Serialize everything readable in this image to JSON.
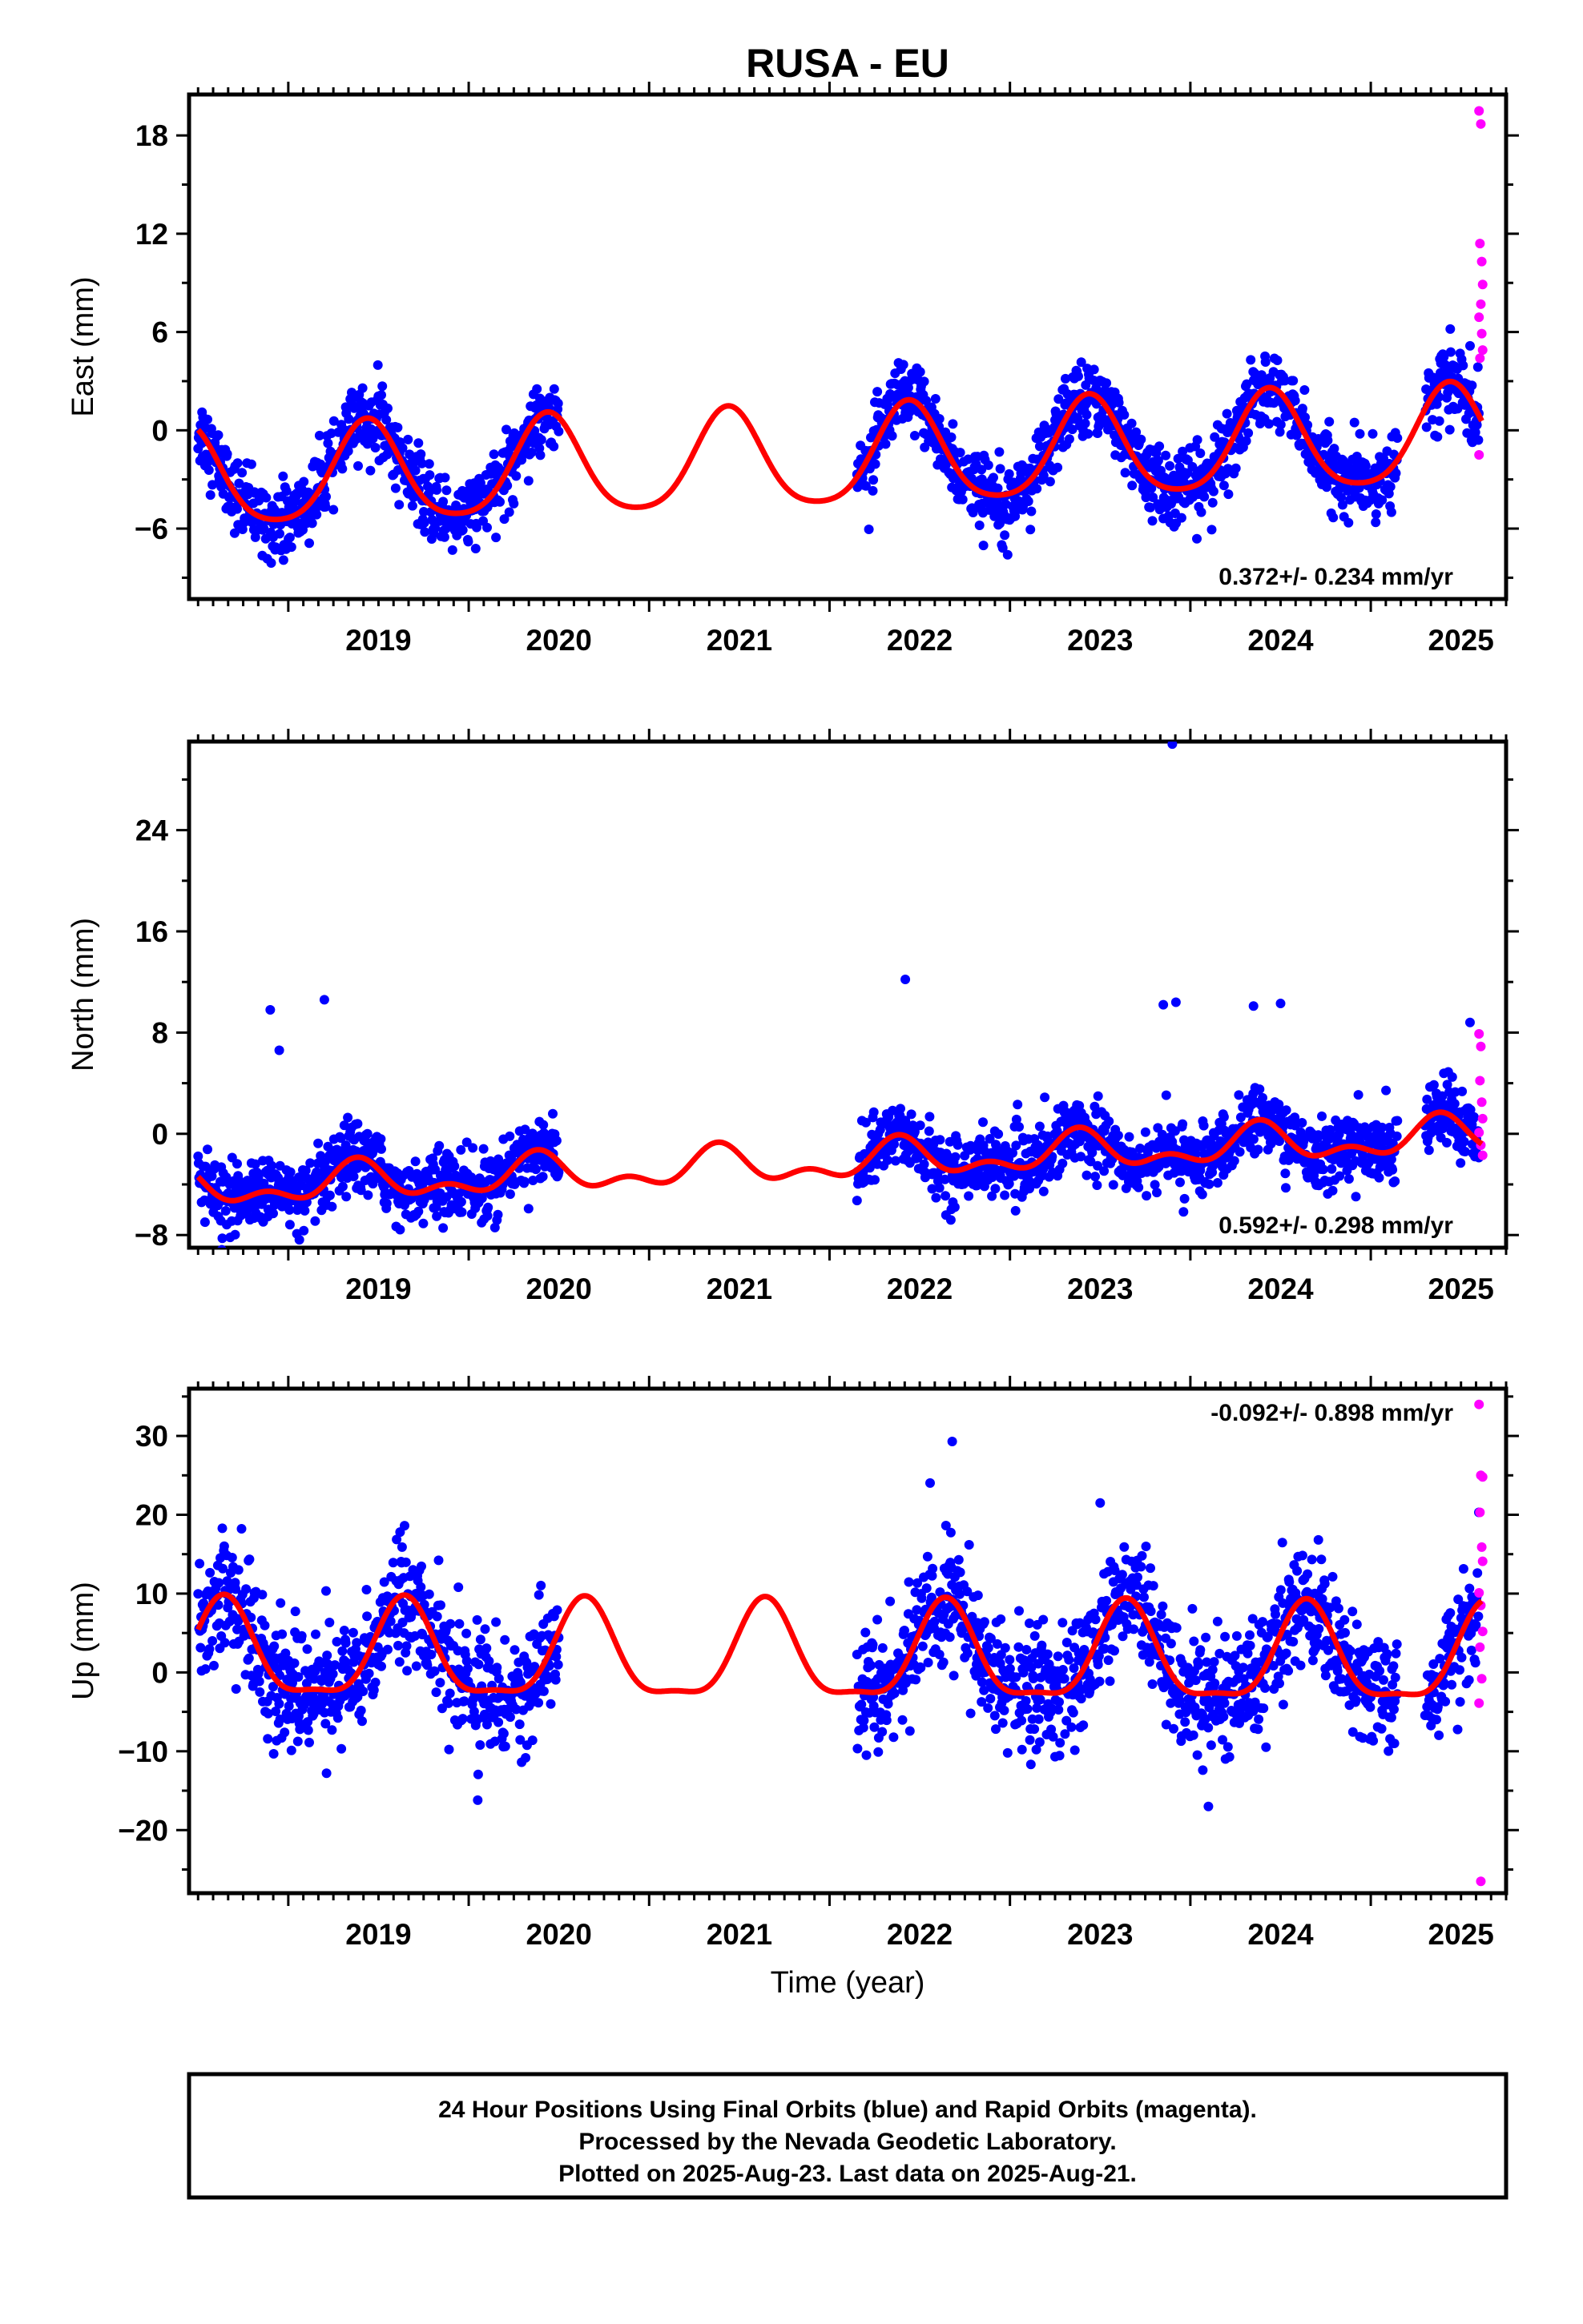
{
  "title": "RUSA - EU",
  "xlabel": "Time (year)",
  "footer": {
    "line1": "24 Hour Positions Using Final Orbits (blue) and Rapid Orbits (magenta).",
    "line2": "Processed by the Nevada Geodetic Laboratory.",
    "line3": "Plotted on 2025-Aug-23. Last data on 2025-Aug-21."
  },
  "colors": {
    "final_orbits": "#0000ff",
    "rapid_orbits": "#ff00ff",
    "model_fit": "#ff0000",
    "axes": "#000000"
  },
  "chart_data": [
    {
      "type": "scatter",
      "panel": "east",
      "ylabel": "East (mm)",
      "rate_text": "0.372+/- 0.234 mm/yr",
      "xlim": [
        2018.45,
        2025.75
      ],
      "ylim": [
        -10.3,
        20.5
      ],
      "xticks": [
        2019,
        2020,
        2021,
        2022,
        2023,
        2024,
        2025
      ],
      "xtick_labels": [
        "2019",
        "2020",
        "2021",
        "2022",
        "2023",
        "2024",
        "2025"
      ],
      "yticks": [
        -6,
        0,
        6,
        12,
        18
      ],
      "ytick_labels": [
        "−6",
        "0",
        "6",
        "12",
        "18"
      ],
      "gaps": [
        [
          2020.5,
          2022.15
        ],
        [
          2025.15,
          2025.3
        ]
      ],
      "fit": {
        "offset": -1.8,
        "rate": 0.372,
        "annual": 3.0,
        "semiannual": 0.5,
        "phase_day": 160
      },
      "noise_sd": 1.1,
      "rapid_points": [
        {
          "x": 2025.6,
          "y": 19.5
        },
        {
          "x": 2025.61,
          "y": 18.7
        },
        {
          "x": 2025.605,
          "y": 11.4
        },
        {
          "x": 2025.615,
          "y": 10.3
        },
        {
          "x": 2025.62,
          "y": 8.9
        },
        {
          "x": 2025.61,
          "y": 7.7
        },
        {
          "x": 2025.6,
          "y": 6.9
        },
        {
          "x": 2025.615,
          "y": 5.9
        },
        {
          "x": 2025.62,
          "y": 4.9
        },
        {
          "x": 2025.605,
          "y": 4.4
        },
        {
          "x": 2025.6,
          "y": -1.5
        }
      ]
    },
    {
      "type": "scatter",
      "panel": "north",
      "ylabel": "North (mm)",
      "rate_text": "0.592+/- 0.298 mm/yr",
      "xlim": [
        2018.45,
        2025.75
      ],
      "ylim": [
        -9.0,
        31.0
      ],
      "xticks": [
        2019,
        2020,
        2021,
        2022,
        2023,
        2024,
        2025
      ],
      "xtick_labels": [
        "2019",
        "2020",
        "2021",
        "2022",
        "2023",
        "2024",
        "2025"
      ],
      "yticks": [
        -8,
        0,
        8,
        16,
        24
      ],
      "ytick_labels": [
        "−8",
        "0",
        "8",
        "16",
        "24"
      ],
      "gaps": [
        [
          2020.5,
          2022.15
        ],
        [
          2025.15,
          2025.3
        ]
      ],
      "fit": {
        "offset": -2.3,
        "rate": 0.592,
        "annual": 1.2,
        "semiannual": 0.8,
        "phase_day": 140
      },
      "noise_sd": 1.3,
      "outliers": [
        {
          "x": 2018.9,
          "y": 9.8
        },
        {
          "x": 2018.95,
          "y": 6.6
        },
        {
          "x": 2019.2,
          "y": 10.6
        },
        {
          "x": 2022.42,
          "y": 12.2
        },
        {
          "x": 2023.9,
          "y": 30.8
        },
        {
          "x": 2023.85,
          "y": 10.2
        },
        {
          "x": 2023.92,
          "y": 10.4
        },
        {
          "x": 2024.35,
          "y": 10.1
        },
        {
          "x": 2024.5,
          "y": 10.3
        },
        {
          "x": 2025.55,
          "y": 8.8
        }
      ],
      "rapid_points": [
        {
          "x": 2025.6,
          "y": 7.9
        },
        {
          "x": 2025.61,
          "y": 6.9
        },
        {
          "x": 2025.605,
          "y": 4.2
        },
        {
          "x": 2025.615,
          "y": 2.5
        },
        {
          "x": 2025.62,
          "y": 1.2
        },
        {
          "x": 2025.6,
          "y": 0.1
        },
        {
          "x": 2025.61,
          "y": -0.9
        },
        {
          "x": 2025.62,
          "y": -1.7
        }
      ]
    },
    {
      "type": "scatter",
      "panel": "up",
      "ylabel": "Up (mm)",
      "rate_text": "-0.092+/- 0.898 mm/yr",
      "xlim": [
        2018.45,
        2025.75
      ],
      "ylim": [
        -28.0,
        36.0
      ],
      "xticks": [
        2019,
        2020,
        2021,
        2022,
        2023,
        2024,
        2025
      ],
      "xtick_labels": [
        "2019",
        "2020",
        "2021",
        "2022",
        "2023",
        "2024",
        "2025"
      ],
      "yticks": [
        -20,
        -10,
        0,
        10,
        20,
        30
      ],
      "ytick_labels": [
        "−20",
        "−10",
        "0",
        "10",
        "20",
        "30"
      ],
      "gaps": [
        [
          2020.5,
          2022.15
        ],
        [
          2025.15,
          2025.3
        ]
      ],
      "fit": {
        "offset": 1.8,
        "rate": -0.092,
        "annual": 6.0,
        "semiannual": 1.8,
        "phase_day": 235
      },
      "noise_sd": 3.8,
      "outliers": [
        {
          "x": 2022.68,
          "y": 29.3
        },
        {
          "x": 2023.5,
          "y": 21.5
        },
        {
          "x": 2024.1,
          "y": -17.0
        },
        {
          "x": 2020.05,
          "y": -16.2
        }
      ],
      "rapid_points": [
        {
          "x": 2025.6,
          "y": 34.0
        },
        {
          "x": 2025.61,
          "y": 25.0
        },
        {
          "x": 2025.62,
          "y": 24.8
        },
        {
          "x": 2025.605,
          "y": 20.3
        },
        {
          "x": 2025.615,
          "y": 15.9
        },
        {
          "x": 2025.62,
          "y": 14.1
        },
        {
          "x": 2025.6,
          "y": 10.1
        },
        {
          "x": 2025.61,
          "y": 8.5
        },
        {
          "x": 2025.62,
          "y": 5.2
        },
        {
          "x": 2025.605,
          "y": 3.2
        },
        {
          "x": 2025.615,
          "y": -0.8
        },
        {
          "x": 2025.6,
          "y": -3.9
        },
        {
          "x": 2025.61,
          "y": -26.5
        }
      ]
    }
  ]
}
